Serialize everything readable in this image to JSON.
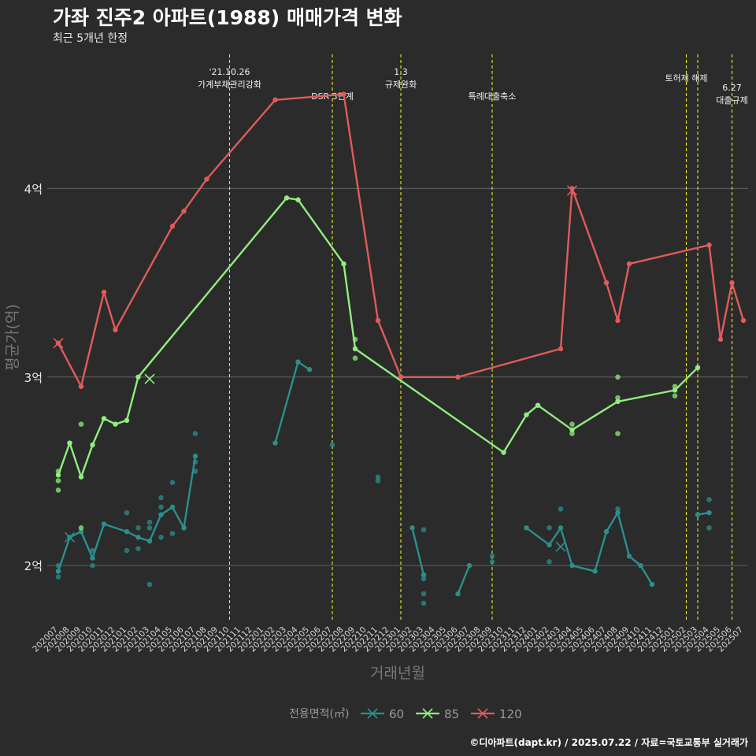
{
  "title": "가좌 진주2 아파트(1988) 매매가격 변화",
  "subtitle": "최근 5개년 한정",
  "caption": "©디아파트(dapt.kr) / 2025.07.22 / 자료=국토교통부 실거래가",
  "chart_data": {
    "type": "line",
    "xlabel": "거래년월",
    "ylabel": "평균가(억)",
    "ylim": [
      1.7,
      4.72
    ],
    "yticks": [
      {
        "v": 2,
        "label": "2억"
      },
      {
        "v": 3,
        "label": "3억"
      },
      {
        "v": 4,
        "label": "4억"
      }
    ],
    "grid": true,
    "categories": [
      "202007",
      "202008",
      "202009",
      "202010",
      "202011",
      "202012",
      "202101",
      "202102",
      "202103",
      "202104",
      "202105",
      "202106",
      "202107",
      "202108",
      "202109",
      "202110",
      "202111",
      "202112",
      "202201",
      "202202",
      "202203",
      "202204",
      "202205",
      "202206",
      "202207",
      "202208",
      "202209",
      "202210",
      "202211",
      "202212",
      "202301",
      "202302",
      "202303",
      "202304",
      "202305",
      "202306",
      "202307",
      "202308",
      "202309",
      "202310",
      "202311",
      "202312",
      "202401",
      "202402",
      "202403",
      "202404",
      "202405",
      "202406",
      "202407",
      "202408",
      "202409",
      "202410",
      "202411",
      "202412",
      "202501",
      "202502",
      "202503",
      "202504",
      "202505",
      "202506",
      "202507"
    ],
    "legend": {
      "title": "전용면적(㎡)",
      "position": "bottom"
    },
    "series": [
      {
        "name": "60",
        "color": "#2a8f8f",
        "line": [
          [
            [
              "202007",
              1.97
            ],
            [
              "202008",
              2.15
            ],
            [
              "202009",
              2.18
            ],
            [
              "202010",
              2.04
            ],
            [
              "202011",
              2.22
            ],
            [
              "202101",
              2.18
            ],
            [
              "202102",
              2.15
            ],
            [
              "202103",
              2.13
            ],
            [
              "202104",
              2.27
            ],
            [
              "202105",
              2.31
            ],
            [
              "202106",
              2.2
            ],
            [
              "202107",
              2.58
            ]
          ],
          [
            [
              "202202",
              2.65
            ],
            [
              "202204",
              3.08
            ],
            [
              "202205",
              3.04
            ]
          ],
          [
            [
              "202302",
              2.2
            ],
            [
              "202303",
              1.95
            ]
          ],
          [
            [
              "202306",
              1.85
            ],
            [
              "202307",
              2.0
            ]
          ],
          [
            [
              "202312",
              2.2
            ],
            [
              "202402",
              2.11
            ],
            [
              "202403",
              2.2
            ],
            [
              "202404",
              2.0
            ],
            [
              "202406",
              1.97
            ],
            [
              "202407",
              2.18
            ],
            [
              "202408",
              2.28
            ],
            [
              "202409",
              2.05
            ],
            [
              "202410",
              2.0
            ],
            [
              "202411",
              1.9
            ]
          ],
          [
            [
              "202503",
              2.27
            ],
            [
              "202504",
              2.28
            ]
          ]
        ],
        "points": [
          [
            "202007",
            2.0
          ],
          [
            "202007",
            1.94
          ],
          [
            "202007",
            1.97
          ],
          [
            "202010",
            2.0
          ],
          [
            "202010",
            2.08
          ],
          [
            "202101",
            2.08
          ],
          [
            "202101",
            2.28
          ],
          [
            "202102",
            2.09
          ],
          [
            "202102",
            2.2
          ],
          [
            "202103",
            1.9
          ],
          [
            "202103",
            2.23
          ],
          [
            "202103",
            2.2
          ],
          [
            "202104",
            2.15
          ],
          [
            "202104",
            2.31
          ],
          [
            "202104",
            2.36
          ],
          [
            "202105",
            2.17
          ],
          [
            "202105",
            2.44
          ],
          [
            "202106",
            2.2
          ],
          [
            "202107",
            2.5
          ],
          [
            "202107",
            2.55
          ],
          [
            "202107",
            2.7
          ],
          [
            "202207",
            2.64
          ],
          [
            "202211",
            2.45
          ],
          [
            "202211",
            2.47
          ],
          [
            "202303",
            1.85
          ],
          [
            "202303",
            1.8
          ],
          [
            "202303",
            1.93
          ],
          [
            "202303",
            2.19
          ],
          [
            "202309",
            2.05
          ],
          [
            "202309",
            2.02
          ],
          [
            "202402",
            2.2
          ],
          [
            "202402",
            2.02
          ],
          [
            "202403",
            2.3
          ],
          [
            "202408",
            2.3
          ],
          [
            "202504",
            2.35
          ],
          [
            "202504",
            2.2
          ]
        ],
        "highlight": [
          [
            "202008",
            2.15
          ],
          [
            "202403",
            2.1
          ]
        ]
      },
      {
        "name": "85",
        "color": "#90ee7e",
        "line": [
          [
            [
              "202007",
              2.48
            ],
            [
              "202008",
              2.65
            ],
            [
              "202009",
              2.47
            ],
            [
              "202010",
              2.64
            ],
            [
              "202011",
              2.78
            ],
            [
              "202012",
              2.75
            ],
            [
              "202101",
              2.77
            ],
            [
              "202102",
              3.0
            ],
            [
              "202203",
              3.95
            ],
            [
              "202204",
              3.94
            ],
            [
              "202208",
              3.6
            ],
            [
              "202209",
              3.15
            ],
            [
              "202310",
              2.6
            ],
            [
              "202312",
              2.8
            ],
            [
              "202401",
              2.85
            ],
            [
              "202404",
              2.72
            ],
            [
              "202408",
              2.87
            ],
            [
              "202501",
              2.93
            ],
            [
              "202503",
              3.05
            ]
          ]
        ],
        "points": [
          [
            "202007",
            2.5
          ],
          [
            "202007",
            2.45
          ],
          [
            "202007",
            2.4
          ],
          [
            "202009",
            2.75
          ],
          [
            "202009",
            2.2
          ],
          [
            "202209",
            3.2
          ],
          [
            "202209",
            3.1
          ],
          [
            "202404",
            2.75
          ],
          [
            "202404",
            2.7
          ],
          [
            "202408",
            3.0
          ],
          [
            "202408",
            2.89
          ],
          [
            "202408",
            2.7
          ],
          [
            "202501",
            2.95
          ],
          [
            "202501",
            2.9
          ]
        ],
        "highlight": [
          [
            "202103",
            2.99
          ]
        ]
      },
      {
        "name": "120",
        "color": "#e05b5b",
        "line": [
          [
            [
              "202007",
              3.18
            ],
            [
              "202009",
              2.95
            ],
            [
              "202011",
              3.45
            ],
            [
              "202012",
              3.25
            ],
            [
              "202105",
              3.8
            ],
            [
              "202106",
              3.88
            ],
            [
              "202108",
              4.05
            ],
            [
              "202202",
              4.47
            ],
            [
              "202208",
              4.5
            ],
            [
              "202211",
              3.3
            ],
            [
              "202301",
              3.0
            ],
            [
              "202306",
              3.0
            ],
            [
              "202403",
              3.15
            ],
            [
              "202404",
              4.0
            ],
            [
              "202407",
              3.5
            ],
            [
              "202408",
              3.3
            ],
            [
              "202409",
              3.6
            ],
            [
              "202504",
              3.7
            ],
            [
              "202505",
              3.2
            ],
            [
              "202506",
              3.5
            ],
            [
              "202507",
              3.3
            ]
          ]
        ],
        "points": [],
        "highlight": [
          [
            "202007",
            3.18
          ],
          [
            "202404",
            3.99
          ]
        ]
      }
    ],
    "annotations": [
      {
        "x": "202110",
        "lines": [
          "'21.10.26",
          "가계부채관리강화"
        ],
        "offset": 0,
        "line_y": 0
      },
      {
        "x": "202207",
        "lines": [
          "DSR 3단계"
        ],
        "offset": 0,
        "line_y": 1
      },
      {
        "x": "202301",
        "lines": [
          "1.3",
          "규제완화"
        ],
        "offset": 0,
        "line_y": 0
      },
      {
        "x": "202309",
        "lines": [
          "특례대출축소"
        ],
        "offset": 0,
        "line_y": 1
      },
      {
        "x": "202502",
        "lines": [
          "토허제 해제"
        ],
        "offset": 0,
        "line_y": 0.3
      },
      {
        "x": "202503",
        "lines": [],
        "offset": 0,
        "line_y": 0
      },
      {
        "x": "202506",
        "lines": [
          "6.27",
          "대출규제"
        ],
        "offset": 0,
        "line_y": 0.6
      }
    ],
    "annotation_color": "#e8e82a"
  }
}
